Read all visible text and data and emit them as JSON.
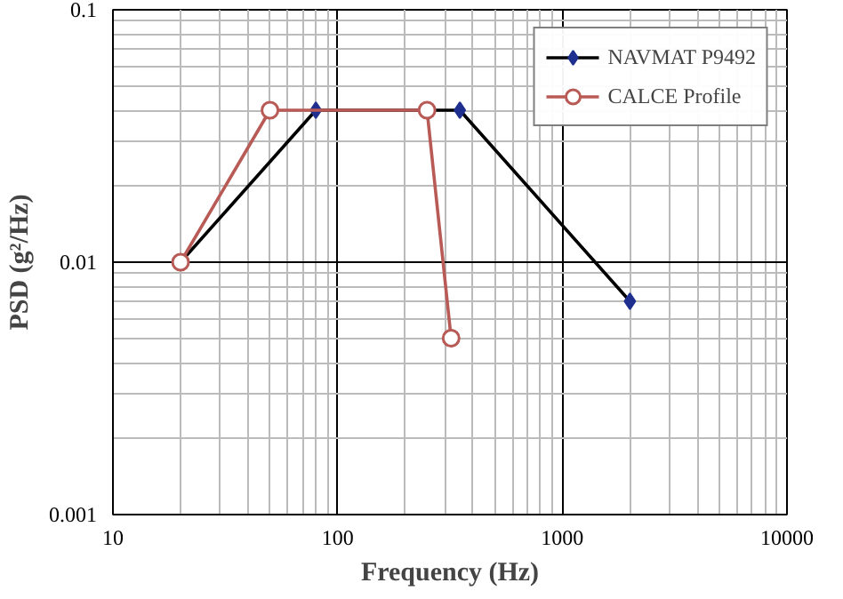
{
  "chart_data": {
    "type": "line",
    "xlabel": "Frequency (Hz)",
    "ylabel": "PSD (g²/Hz)",
    "log": "xy",
    "xlim": [
      10,
      10000
    ],
    "ylim": [
      0.001,
      0.1
    ],
    "xticks": [
      10,
      100,
      1000,
      10000
    ],
    "yticks": [
      0.001,
      0.01,
      0.1
    ],
    "grid": true,
    "legend": "top right",
    "line_style": "solid",
    "series": [
      {
        "name": "NAVMAT P9492",
        "color": "#000000",
        "colors": [
          "#1f2f8f",
          "#1f2f8f",
          "#1f2f8f",
          "#1f2f8f"
        ],
        "marker": "diamond",
        "x": [
          20,
          80,
          350,
          2000
        ],
        "values": [
          0.01,
          0.04,
          0.04,
          0.007
        ]
      },
      {
        "name": "CALCE Profile",
        "color": "#b85a55",
        "colors": [
          "#b85a55",
          "#b85a55",
          "#b85a55",
          "#b85a55"
        ],
        "marker": "circle",
        "x": [
          20,
          50,
          250,
          320
        ],
        "values": [
          0.01,
          0.04,
          0.04,
          0.005
        ]
      }
    ]
  }
}
